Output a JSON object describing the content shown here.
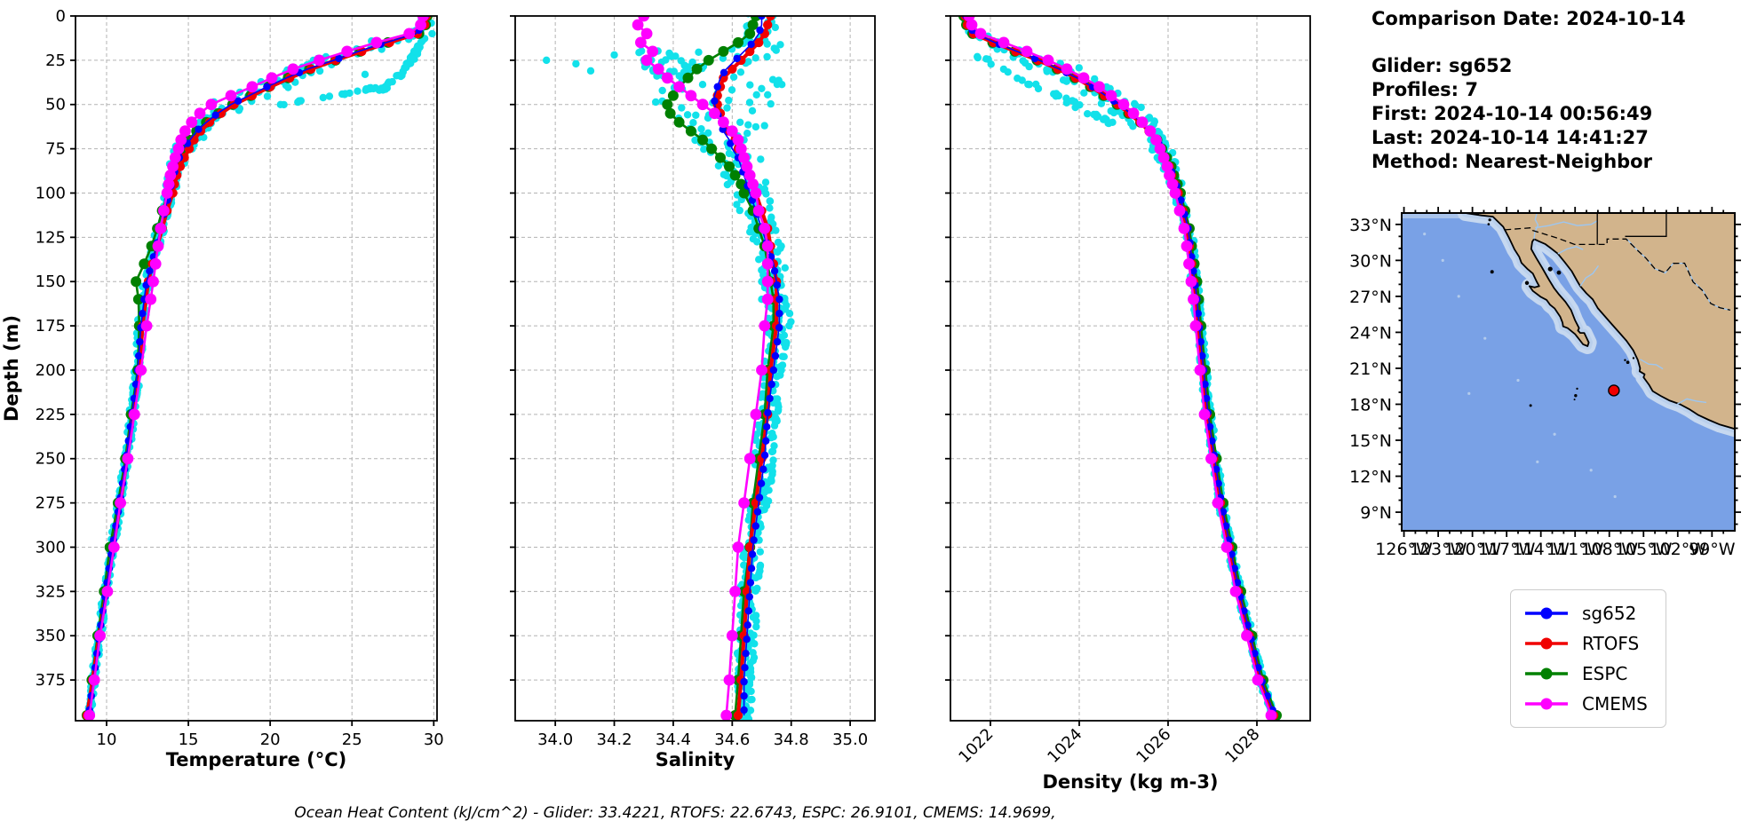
{
  "info": {
    "comparison_date": "Comparison Date: 2024-10-14",
    "glider": "Glider: sg652",
    "profiles": "Profiles: 7",
    "first": "First: 2024-10-14 00:56:49",
    "last": "Last: 2024-10-14 14:41:27",
    "method": "Method: Nearest-Neighbor"
  },
  "footer": {
    "ohc_text": "Ocean Heat Content (kJ/cm^2) - Glider: 33.4221,  RTOFS: 22.6743,  ESPC: 26.9101,  CMEMS: 14.9699,"
  },
  "legend": {
    "items": [
      {
        "label": "sg652",
        "color": "#0000ff"
      },
      {
        "label": "RTOFS",
        "color": "#f00000"
      },
      {
        "label": "ESPC",
        "color": "#008000"
      },
      {
        "label": "CMEMS",
        "color": "#ff00ff"
      }
    ]
  },
  "colors": {
    "scatter": "#12e1ea",
    "grid": "#b3b3b3",
    "frame": "#000000"
  },
  "axes": {
    "ylabel": "Depth (m)",
    "ylim": [
      0,
      398
    ],
    "depth_ticks": [
      0,
      25,
      50,
      75,
      100,
      125,
      150,
      175,
      200,
      225,
      250,
      275,
      300,
      325,
      350,
      375
    ],
    "depths": [
      0,
      5,
      10,
      15,
      20,
      25,
      30,
      35,
      40,
      45,
      50,
      55,
      60,
      65,
      70,
      75,
      80,
      85,
      90,
      95,
      100,
      110,
      120,
      130,
      140,
      150,
      160,
      175,
      200,
      225,
      250,
      275,
      300,
      325,
      350,
      375,
      395
    ]
  },
  "chart_data": [
    {
      "type": "line",
      "name": "temperature-profile",
      "xlabel": "Temperature (°C)",
      "ylabel": "Depth (m)",
      "xlim": [
        8.1,
        30.2
      ],
      "ylim": [
        0,
        398
      ],
      "grid": true,
      "legend_position": "outside-right",
      "xticks": [
        {
          "v": 10,
          "label": "10"
        },
        {
          "v": 15,
          "label": "15"
        },
        {
          "v": 20,
          "label": "20"
        },
        {
          "v": 25,
          "label": "25"
        },
        {
          "v": 30,
          "label": "30"
        }
      ],
      "series": [
        {
          "name": "sg652",
          "color": "#0000ff",
          "lw": 1.6,
          "marker_r": 4.2,
          "marker_step": 8,
          "values": [
            29.5,
            29.4,
            28.9,
            27.1,
            25.4,
            23.9,
            22.3,
            21.0,
            19.8,
            18.7,
            17.6,
            16.8,
            16.1,
            15.5,
            15.1,
            14.7,
            14.45,
            14.25,
            14.1,
            13.95,
            13.85,
            13.55,
            13.3,
            13.05,
            12.75,
            12.45,
            12.3,
            12.1,
            11.9,
            11.55,
            11.2,
            10.8,
            10.35,
            9.95,
            9.55,
            9.2,
            8.9
          ]
        },
        {
          "name": "RTOFS",
          "color": "#f00000",
          "lw": 4.2,
          "marker_r": 5.2,
          "values": [
            29.55,
            29.45,
            29.0,
            27.3,
            25.6,
            24.0,
            22.5,
            21.2,
            20.0,
            18.9,
            17.8,
            17.0,
            16.3,
            15.75,
            15.35,
            15.05,
            14.75,
            14.5,
            14.3,
            14.15,
            14.05,
            13.7,
            13.4,
            13.1,
            12.8,
            12.55,
            12.4,
            12.2,
            12.0,
            11.6,
            11.25,
            10.85,
            10.4,
            10.0,
            9.55,
            9.15,
            8.8
          ]
        },
        {
          "name": "ESPC",
          "color": "#008000",
          "lw": 2.6,
          "marker_r": 6.0,
          "values": [
            29.6,
            29.5,
            29.1,
            27.2,
            25.5,
            24.0,
            22.4,
            21.1,
            19.9,
            18.8,
            17.7,
            16.85,
            16.1,
            15.5,
            15.0,
            14.6,
            14.3,
            14.1,
            13.95,
            13.85,
            13.75,
            13.4,
            13.1,
            12.75,
            12.3,
            11.8,
            11.95,
            12.0,
            11.9,
            11.5,
            11.15,
            10.7,
            10.2,
            9.85,
            9.45,
            9.1,
            8.8
          ]
        },
        {
          "name": "CMEMS",
          "color": "#ff00ff",
          "lw": 2.6,
          "marker_r": 6.4,
          "values": [
            29.35,
            29.2,
            28.5,
            26.5,
            24.7,
            23.0,
            21.4,
            20.1,
            18.9,
            17.6,
            16.4,
            15.7,
            15.2,
            14.8,
            14.55,
            14.4,
            14.2,
            14.05,
            13.9,
            13.8,
            13.7,
            13.5,
            13.3,
            13.15,
            13.0,
            12.85,
            12.7,
            12.45,
            12.1,
            11.7,
            11.3,
            10.85,
            10.45,
            10.05,
            9.6,
            9.25,
            8.95
          ]
        }
      ],
      "scatter": {
        "name": "glider-raw-points",
        "seed": 11,
        "step": 2.5,
        "per_step": 3,
        "spread_nodes": [
          [
            0,
            0.22
          ],
          [
            8,
            0.35
          ],
          [
            14,
            0.9
          ],
          [
            20,
            1.3
          ],
          [
            30,
            1.45
          ],
          [
            45,
            1.4
          ],
          [
            55,
            1.0
          ],
          [
            65,
            0.7
          ],
          [
            80,
            0.45
          ],
          [
            100,
            0.3
          ],
          [
            140,
            0.25
          ],
          [
            200,
            0.2
          ],
          [
            300,
            0.16
          ],
          [
            398,
            0.14
          ]
        ],
        "branches": [
          {
            "depths": [
              12,
              18,
              24,
              30,
              36,
              42
            ],
            "values": [
              29.4,
              29.05,
              28.7,
              28.3,
              27.6,
              26.8
            ],
            "n": 50,
            "jitter": 0.18
          },
          {
            "depths": [
              40,
              44,
              48,
              52
            ],
            "values": [
              26.6,
              24.6,
              21.8,
              19.9
            ],
            "n": 22,
            "jitter": 0.25
          }
        ],
        "extra_points": [
          [
            29.85,
            4
          ],
          [
            29.9,
            10
          ],
          [
            25.8,
            33
          ]
        ]
      }
    },
    {
      "type": "line",
      "name": "salinity-profile",
      "xlabel": "Salinity",
      "xlim": [
        33.864,
        35.084
      ],
      "ylim": [
        0,
        398
      ],
      "grid": true,
      "xticks": [
        {
          "v": 34.0,
          "label": "34.0"
        },
        {
          "v": 34.2,
          "label": "34.2"
        },
        {
          "v": 34.4,
          "label": "34.4"
        },
        {
          "v": 34.6,
          "label": "34.6"
        },
        {
          "v": 34.8,
          "label": "34.8"
        },
        {
          "v": 35.0,
          "label": "35.0"
        }
      ],
      "series": [
        {
          "name": "sg652",
          "color": "#0000ff",
          "lw": 1.6,
          "marker_r": 4.2,
          "marker_step": 8,
          "values": [
            34.7,
            34.7,
            34.69,
            34.67,
            34.64,
            34.61,
            34.58,
            34.56,
            34.55,
            34.54,
            34.54,
            34.55,
            34.56,
            34.57,
            34.59,
            34.6,
            34.62,
            34.63,
            34.64,
            34.65,
            34.66,
            34.68,
            34.7,
            34.72,
            34.74,
            34.75,
            34.76,
            34.76,
            34.74,
            34.72,
            34.71,
            34.69,
            34.67,
            34.66,
            34.65,
            34.64,
            34.64
          ]
        },
        {
          "name": "RTOFS",
          "color": "#f00000",
          "lw": 4.2,
          "marker_r": 5.2,
          "values": [
            34.73,
            34.72,
            34.71,
            34.69,
            34.66,
            34.63,
            34.6,
            34.57,
            34.56,
            34.55,
            34.55,
            34.56,
            34.57,
            34.59,
            34.61,
            34.62,
            34.64,
            34.65,
            34.66,
            34.67,
            34.68,
            34.7,
            34.72,
            34.73,
            34.74,
            34.75,
            34.75,
            34.75,
            34.73,
            34.72,
            34.7,
            34.68,
            34.66,
            34.65,
            34.64,
            34.63,
            34.62
          ]
        },
        {
          "name": "ESPC",
          "color": "#008000",
          "lw": 2.6,
          "marker_r": 6.0,
          "values": [
            34.68,
            34.67,
            34.66,
            34.62,
            34.57,
            34.52,
            34.48,
            34.45,
            34.42,
            34.4,
            34.38,
            34.39,
            34.42,
            34.46,
            34.5,
            34.53,
            34.56,
            34.59,
            34.61,
            34.63,
            34.64,
            34.67,
            34.69,
            34.71,
            34.72,
            34.73,
            34.74,
            34.74,
            34.72,
            34.71,
            34.69,
            34.67,
            34.66,
            34.64,
            34.63,
            34.62,
            34.61
          ]
        },
        {
          "name": "CMEMS",
          "color": "#ff00ff",
          "lw": 2.6,
          "marker_r": 6.4,
          "values": [
            34.3,
            34.28,
            34.31,
            34.29,
            34.33,
            34.31,
            34.35,
            34.38,
            34.42,
            34.46,
            34.5,
            34.54,
            34.57,
            34.6,
            34.62,
            34.63,
            34.64,
            34.65,
            34.66,
            34.67,
            34.68,
            34.69,
            34.71,
            34.72,
            34.72,
            34.72,
            34.72,
            34.71,
            34.7,
            34.68,
            34.66,
            34.64,
            34.62,
            34.61,
            34.6,
            34.59,
            34.58
          ]
        }
      ],
      "scatter": {
        "name": "glider-raw-points",
        "seed": 22,
        "step": 2.5,
        "per_step": 3,
        "spread_nodes": [
          [
            0,
            0.05
          ],
          [
            12,
            0.06
          ],
          [
            18,
            0.14
          ],
          [
            25,
            0.2
          ],
          [
            40,
            0.22
          ],
          [
            55,
            0.18
          ],
          [
            70,
            0.12
          ],
          [
            90,
            0.07
          ],
          [
            120,
            0.05
          ],
          [
            200,
            0.035
          ],
          [
            398,
            0.03
          ]
        ],
        "branches": [
          {
            "depths": [
              18,
              26,
              34,
              42
            ],
            "values": [
              34.33,
              34.36,
              34.4,
              34.45
            ],
            "n": 28,
            "jitter": 0.07
          }
        ],
        "extra_points": [
          [
            34.07,
            27
          ],
          [
            34.12,
            31
          ],
          [
            34.2,
            22
          ],
          [
            33.97,
            25
          ],
          [
            34.7,
            150
          ],
          [
            34.7,
            160
          ]
        ]
      }
    },
    {
      "type": "line",
      "name": "density-profile",
      "xlabel": "Density (kg m-3)",
      "rotate_xticklabels": 45,
      "xlim": [
        1021.1,
        1029.2
      ],
      "ylim": [
        0,
        398
      ],
      "grid": true,
      "xticks": [
        {
          "v": 1022,
          "label": "1022"
        },
        {
          "v": 1024,
          "label": "1024"
        },
        {
          "v": 1026,
          "label": "1026"
        },
        {
          "v": 1028,
          "label": "1028"
        }
      ],
      "series": [
        {
          "name": "sg652",
          "color": "#0000ff",
          "lw": 1.6,
          "marker_r": 4.2,
          "marker_step": 8,
          "values": [
            1021.45,
            1021.5,
            1021.65,
            1022.1,
            1022.6,
            1023.1,
            1023.55,
            1023.95,
            1024.3,
            1024.6,
            1024.9,
            1025.15,
            1025.4,
            1025.6,
            1025.75,
            1025.85,
            1025.95,
            1026.05,
            1026.1,
            1026.18,
            1026.25,
            1026.35,
            1026.45,
            1026.5,
            1026.55,
            1026.6,
            1026.65,
            1026.7,
            1026.8,
            1026.9,
            1027.05,
            1027.2,
            1027.4,
            1027.6,
            1027.85,
            1028.1,
            1028.4
          ]
        },
        {
          "name": "RTOFS",
          "color": "#f00000",
          "lw": 4.2,
          "marker_r": 5.2,
          "values": [
            1021.43,
            1021.48,
            1021.62,
            1022.07,
            1022.57,
            1023.07,
            1023.52,
            1023.92,
            1024.27,
            1024.57,
            1024.87,
            1025.12,
            1025.37,
            1025.57,
            1025.72,
            1025.83,
            1025.93,
            1026.03,
            1026.08,
            1026.16,
            1026.23,
            1026.33,
            1026.43,
            1026.48,
            1026.53,
            1026.58,
            1026.63,
            1026.68,
            1026.78,
            1026.88,
            1027.03,
            1027.18,
            1027.38,
            1027.58,
            1027.83,
            1028.08,
            1028.38
          ]
        },
        {
          "name": "ESPC",
          "color": "#008000",
          "lw": 2.6,
          "marker_r": 6.0,
          "values": [
            1021.4,
            1021.46,
            1021.6,
            1022.05,
            1022.55,
            1023.05,
            1023.5,
            1023.9,
            1024.25,
            1024.55,
            1024.85,
            1025.11,
            1025.38,
            1025.59,
            1025.75,
            1025.86,
            1025.97,
            1026.07,
            1026.13,
            1026.21,
            1026.28,
            1026.38,
            1026.48,
            1026.53,
            1026.59,
            1026.65,
            1026.69,
            1026.74,
            1026.84,
            1026.94,
            1027.09,
            1027.24,
            1027.44,
            1027.64,
            1027.89,
            1028.14,
            1028.44
          ]
        },
        {
          "name": "CMEMS",
          "color": "#ff00ff",
          "lw": 2.6,
          "marker_r": 6.4,
          "values": [
            1021.52,
            1021.58,
            1021.78,
            1022.3,
            1022.82,
            1023.3,
            1023.72,
            1024.1,
            1024.45,
            1024.72,
            1025.0,
            1025.22,
            1025.42,
            1025.6,
            1025.73,
            1025.82,
            1025.9,
            1025.98,
            1026.03,
            1026.1,
            1026.16,
            1026.26,
            1026.36,
            1026.42,
            1026.47,
            1026.52,
            1026.57,
            1026.62,
            1026.72,
            1026.82,
            1026.97,
            1027.12,
            1027.32,
            1027.52,
            1027.77,
            1028.02,
            1028.32
          ]
        }
      ],
      "scatter": {
        "name": "glider-raw-points",
        "seed": 33,
        "step": 2.5,
        "per_step": 3,
        "spread_nodes": [
          [
            0,
            0.1
          ],
          [
            12,
            0.14
          ],
          [
            18,
            0.34
          ],
          [
            25,
            0.5
          ],
          [
            40,
            0.5
          ],
          [
            55,
            0.4
          ],
          [
            70,
            0.25
          ],
          [
            90,
            0.15
          ],
          [
            120,
            0.1
          ],
          [
            200,
            0.08
          ],
          [
            398,
            0.06
          ]
        ],
        "branches": [
          {
            "depths": [
              22,
              30,
              38,
              46,
              54,
              62
            ],
            "values": [
              1021.7,
              1022.2,
              1022.9,
              1023.6,
              1024.2,
              1024.8
            ],
            "n": 36,
            "jitter": 0.12
          }
        ],
        "extra_points": []
      }
    },
    {
      "type": "map",
      "name": "glider-location-map",
      "extent": {
        "lon_west": 126.2,
        "lon_east": 97.0,
        "lat_north": 33.95,
        "lat_south": 7.45
      },
      "lat_ticks": [
        33,
        30,
        27,
        24,
        21,
        18,
        15,
        12,
        9
      ],
      "lat_labels": [
        "33°N",
        "30°N",
        "27°N",
        "24°N",
        "21°N",
        "18°N",
        "15°N",
        "12°N",
        "9°N"
      ],
      "lon_ticks": [
        126,
        123,
        120,
        117,
        114,
        111,
        108,
        105,
        102,
        99
      ],
      "lon_labels": [
        "126°W",
        "123°W",
        "120°W",
        "117°W",
        "114°W",
        "111°W",
        "108°W",
        "105°W",
        "102°W",
        "99°W"
      ],
      "marker": {
        "lon": 107.6,
        "lat": 19.15,
        "color": "#f00000"
      },
      "colors": {
        "ocean": "#79a1e6",
        "land": "#d2b48c",
        "shelf": "#b9cfec",
        "river": "#9dc6f0",
        "coast": "#000000"
      }
    }
  ]
}
